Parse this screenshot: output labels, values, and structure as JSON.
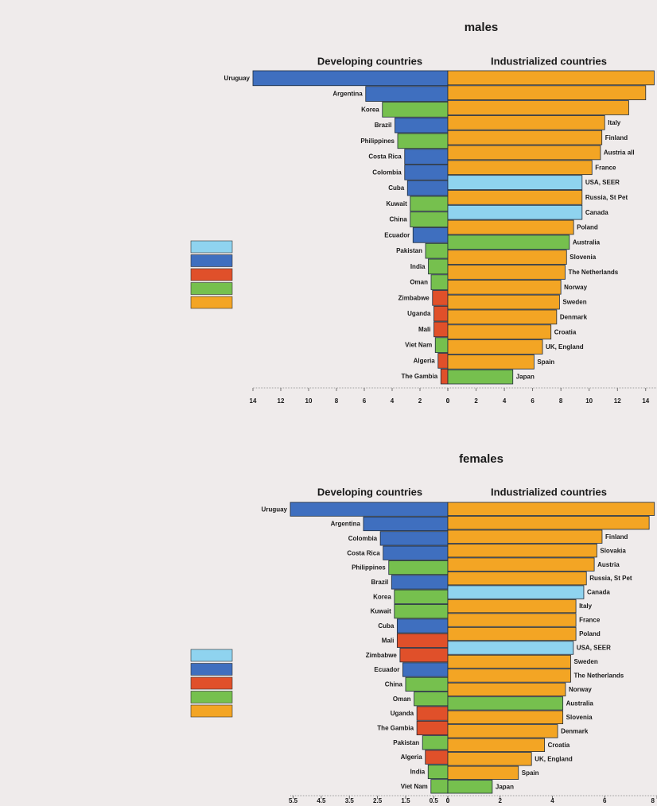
{
  "chart_data": [
    {
      "type": "butterfly",
      "title": "males",
      "left": {
        "title": "Developing countries",
        "xlim": [
          0,
          14
        ],
        "xticks": [
          14,
          12,
          10,
          8,
          6,
          4,
          2,
          0
        ],
        "categories": [
          "Uruguay",
          "Argentina",
          "Korea",
          "Brazil",
          "Philippines",
          "Costa Rica",
          "Colombia",
          "Cuba",
          "Kuwait",
          "China",
          "Ecuador",
          "Pakistan",
          "India",
          "Oman",
          "Zimbabwe",
          "Uganda",
          "Mali",
          "Viet Nam",
          "Algeria",
          "The Gambia"
        ],
        "values": [
          14,
          5.9,
          4.7,
          3.8,
          3.6,
          3.1,
          3.1,
          2.9,
          2.7,
          2.7,
          2.5,
          1.6,
          1.4,
          1.2,
          1.1,
          1.0,
          1.0,
          0.9,
          0.7,
          0.5
        ],
        "colors": [
          "#3f6fbf",
          "#3f6fbf",
          "#76c04e",
          "#3f6fbf",
          "#76c04e",
          "#3f6fbf",
          "#3f6fbf",
          "#3f6fbf",
          "#76c04e",
          "#76c04e",
          "#3f6fbf",
          "#76c04e",
          "#76c04e",
          "#76c04e",
          "#e0502a",
          "#e0502a",
          "#e0502a",
          "#76c04e",
          "#e0502a",
          "#e0502a"
        ]
      },
      "right": {
        "title": "Industrialized countries",
        "xlim": [
          0,
          14.8
        ],
        "xticks": [
          0,
          2,
          4,
          6,
          8,
          10,
          12,
          14
        ],
        "categories": [
          null,
          null,
          null,
          "Italy",
          "Finland",
          "Austria all",
          "France",
          "USA, SEER",
          "Russia, St Pet",
          "Canada",
          "Poland",
          "Australia",
          "Slovenia",
          "The Netherlands",
          "Norway",
          "Sweden",
          "Denmark",
          "Croatia",
          "UK, England",
          "Spain",
          "Japan"
        ],
        "values": [
          14.6,
          14.0,
          12.8,
          11.1,
          10.9,
          10.8,
          10.2,
          9.5,
          9.5,
          9.5,
          8.9,
          8.6,
          8.4,
          8.3,
          8.0,
          7.9,
          7.7,
          7.3,
          6.7,
          6.1,
          4.6
        ],
        "colors": [
          "#f3a524",
          "#f3a524",
          "#f3a524",
          "#f3a524",
          "#f3a524",
          "#f3a524",
          "#f3a524",
          "#8fd3ef",
          "#f3a524",
          "#8fd3ef",
          "#f3a524",
          "#76c04e",
          "#f3a524",
          "#f3a524",
          "#f3a524",
          "#f3a524",
          "#f3a524",
          "#f3a524",
          "#f3a524",
          "#f3a524",
          "#76c04e"
        ]
      },
      "legend": {
        "colors": [
          "#8fd3ef",
          "#3f6fbf",
          "#e0502a",
          "#76c04e",
          "#f3a524"
        ]
      }
    },
    {
      "type": "butterfly",
      "title": "females",
      "left": {
        "title": "Developing countries",
        "xlim": [
          0,
          5.6
        ],
        "xticks": [
          5.5,
          4.5,
          3.5,
          2.5,
          1.5,
          0.5,
          0
        ],
        "categories": [
          "Uruguay",
          "Argentina",
          "Colombia",
          "Costa Rica",
          "Philippines",
          "Brazil",
          "Korea",
          "Kuwait",
          "Cuba",
          "Mali",
          "Zimbabwe",
          "Ecuador",
          "China",
          "Oman",
          "Uganda",
          "The Gambia",
          "Pakistan",
          "Algeria",
          "India",
          "Viet Nam"
        ],
        "values": [
          5.6,
          3.0,
          2.4,
          2.3,
          2.1,
          2.0,
          1.9,
          1.9,
          1.8,
          1.8,
          1.7,
          1.6,
          1.5,
          1.2,
          1.1,
          1.1,
          0.9,
          0.8,
          0.7,
          0.6
        ],
        "colors": [
          "#3f6fbf",
          "#3f6fbf",
          "#3f6fbf",
          "#3f6fbf",
          "#76c04e",
          "#3f6fbf",
          "#76c04e",
          "#76c04e",
          "#3f6fbf",
          "#e0502a",
          "#e0502a",
          "#3f6fbf",
          "#76c04e",
          "#76c04e",
          "#e0502a",
          "#e0502a",
          "#76c04e",
          "#e0502a",
          "#76c04e",
          "#76c04e"
        ]
      },
      "right": {
        "title": "Industrialized countries",
        "xlim": [
          0,
          8
        ],
        "xticks": [
          0,
          2,
          4,
          6,
          8
        ],
        "categories": [
          null,
          null,
          "Finland",
          "Slovakia",
          "Austria",
          "Russia, St Pet",
          "Canada",
          "Italy",
          "France",
          "Poland",
          "USA, SEER",
          "Sweden",
          "The Netherlands",
          "Norway",
          "Australia",
          "Slovenia",
          "Denmark",
          "Croatia",
          "UK, England",
          "Spain",
          "Japan"
        ],
        "values": [
          7.9,
          7.7,
          5.9,
          5.7,
          5.6,
          5.3,
          5.2,
          4.9,
          4.9,
          4.9,
          4.8,
          4.7,
          4.7,
          4.5,
          4.4,
          4.4,
          4.2,
          3.7,
          3.2,
          2.7,
          1.7
        ],
        "colors": [
          "#f3a524",
          "#f3a524",
          "#f3a524",
          "#f3a524",
          "#f3a524",
          "#f3a524",
          "#8fd3ef",
          "#f3a524",
          "#f3a524",
          "#f3a524",
          "#8fd3ef",
          "#f3a524",
          "#f3a524",
          "#f3a524",
          "#76c04e",
          "#f3a524",
          "#f3a524",
          "#f3a524",
          "#f3a524",
          "#f3a524",
          "#76c04e"
        ]
      },
      "legend": {
        "colors": [
          "#8fd3ef",
          "#3f6fbf",
          "#e0502a",
          "#76c04e",
          "#f3a524"
        ]
      }
    }
  ]
}
